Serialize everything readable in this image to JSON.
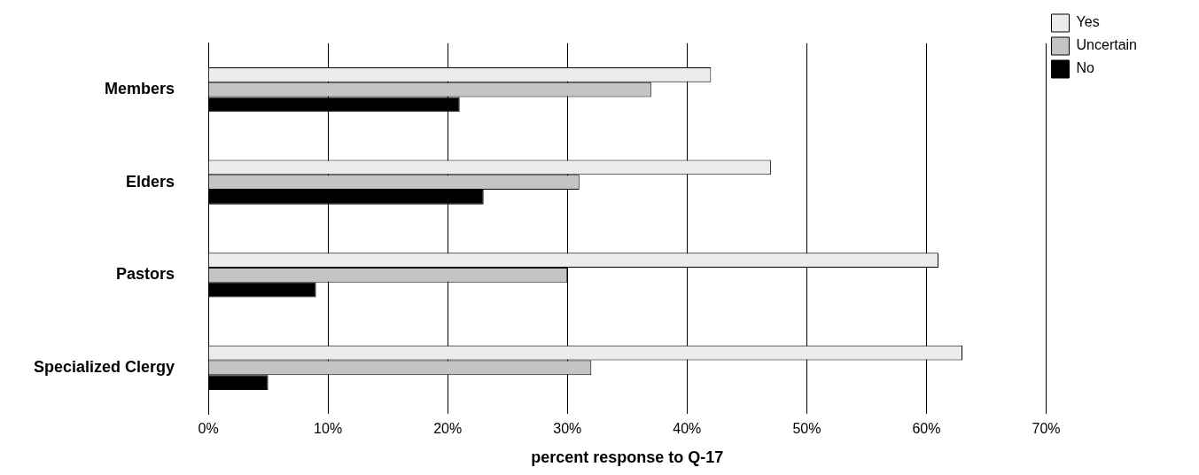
{
  "chart_data": {
    "type": "bar",
    "orientation": "horizontal",
    "xlabel": "percent response to Q-17",
    "categories": [
      "Members",
      "Elders",
      "Pastors",
      "Specialized Clergy"
    ],
    "series": [
      {
        "name": "Yes",
        "color": "#ececec",
        "values": [
          42,
          47,
          61,
          63
        ]
      },
      {
        "name": "Uncertain",
        "color": "#c4c4c4",
        "values": [
          37,
          31,
          30,
          32
        ]
      },
      {
        "name": "No",
        "color": "#000000",
        "values": [
          21,
          23,
          9,
          5
        ]
      }
    ],
    "xlim": [
      0,
      70
    ],
    "xticks": [
      {
        "value": 0,
        "label": "0%"
      },
      {
        "value": 10,
        "label": "10%"
      },
      {
        "value": 20,
        "label": "20%"
      },
      {
        "value": 30,
        "label": "30%"
      },
      {
        "value": 40,
        "label": "40%"
      },
      {
        "value": 50,
        "label": "50%"
      },
      {
        "value": 60,
        "label": "60%"
      },
      {
        "value": 70,
        "label": "70%"
      }
    ],
    "grid": "x",
    "legend": "right"
  }
}
